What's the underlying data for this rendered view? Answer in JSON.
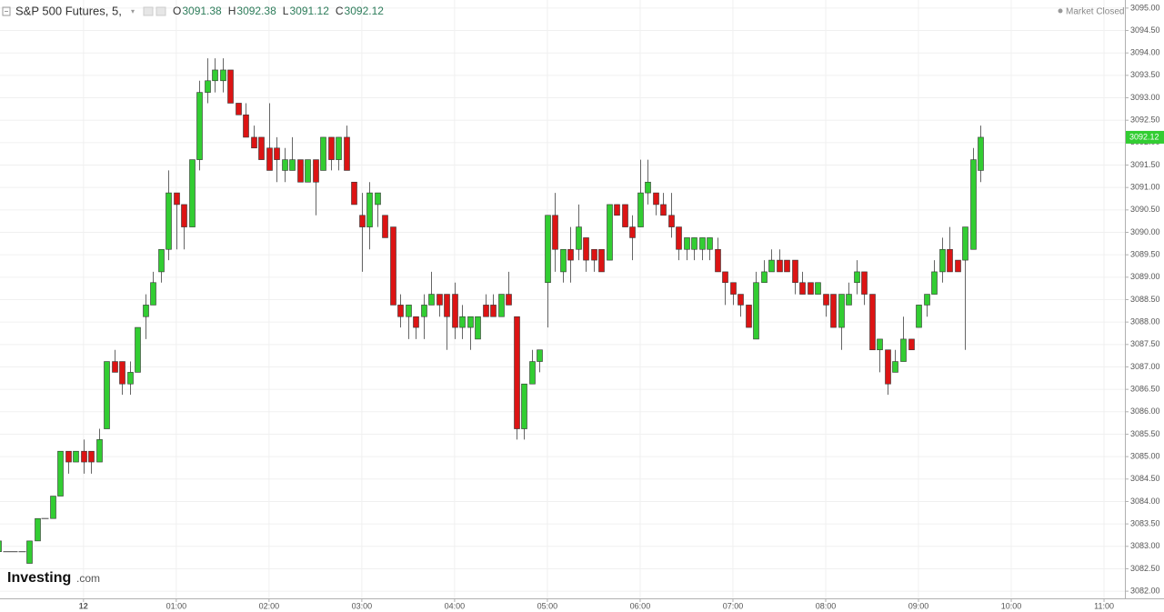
{
  "header": {
    "name": "S&P 500 Futures, 5,",
    "fields": [
      {
        "label": "O",
        "value": 3091.38
      },
      {
        "label": "H",
        "value": 3092.38
      },
      {
        "label": "L",
        "value": 3091.12
      },
      {
        "label": "C",
        "value": 3092.12
      }
    ],
    "status": "Market Closed"
  },
  "logo": {
    "brand": "Investing",
    "suffix": ".com"
  },
  "chart_data": {
    "type": "candlestick",
    "up_color": "#32cd32",
    "down_color": "#dc1414",
    "flat_color": "#444444",
    "grid": true,
    "xlim": [
      -54,
      673.5
    ],
    "ylim": [
      3081.84,
      3095.18
    ],
    "xticks": [
      {
        "value": 0,
        "label": "12"
      },
      {
        "value": 60,
        "label": "01:00"
      },
      {
        "value": 120,
        "label": "02:00"
      },
      {
        "value": 180,
        "label": "03:00"
      },
      {
        "value": 240,
        "label": "04:00"
      },
      {
        "value": 300,
        "label": "05:00"
      },
      {
        "value": 360,
        "label": "06:00"
      },
      {
        "value": 420,
        "label": "07:00"
      },
      {
        "value": 480,
        "label": "08:00"
      },
      {
        "value": 540,
        "label": "09:00"
      },
      {
        "value": 600,
        "label": "10:00"
      },
      {
        "value": 660,
        "label": "11:00"
      }
    ],
    "yticks": [
      {
        "value": 3082,
        "label": "3082.00"
      },
      {
        "value": 3082.5,
        "label": "3082.50"
      },
      {
        "value": 3083,
        "label": "3083.00"
      },
      {
        "value": 3083.5,
        "label": "3083.50"
      },
      {
        "value": 3084,
        "label": "3084.00"
      },
      {
        "value": 3084.5,
        "label": "3084.50"
      },
      {
        "value": 3085,
        "label": "3085.00"
      },
      {
        "value": 3085.5,
        "label": "3085.50"
      },
      {
        "value": 3086,
        "label": "3086.00"
      },
      {
        "value": 3086.5,
        "label": "3086.50"
      },
      {
        "value": 3087,
        "label": "3087.00"
      },
      {
        "value": 3087.5,
        "label": "3087.50"
      },
      {
        "value": 3088,
        "label": "3088.00"
      },
      {
        "value": 3088.5,
        "label": "3088.50"
      },
      {
        "value": 3089,
        "label": "3089.00"
      },
      {
        "value": 3089.5,
        "label": "3089.50"
      },
      {
        "value": 3090,
        "label": "3090.00"
      },
      {
        "value": 3090.5,
        "label": "3090.50"
      },
      {
        "value": 3091,
        "label": "3091.00"
      },
      {
        "value": 3091.5,
        "label": "3091.50"
      },
      {
        "value": 3092,
        "label": "3092.00"
      },
      {
        "value": 3092.5,
        "label": "3092.50"
      },
      {
        "value": 3093,
        "label": "3093.00"
      },
      {
        "value": 3093.5,
        "label": "3093.50"
      },
      {
        "value": 3094,
        "label": "3094.00"
      },
      {
        "value": 3094.5,
        "label": "3094.50"
      },
      {
        "value": 3095,
        "label": "3095.00"
      }
    ],
    "x": [
      -55,
      -50,
      -45,
      -40,
      -35,
      -30,
      -25,
      -20,
      -15,
      -10,
      -5,
      0,
      5,
      10,
      15,
      20,
      25,
      30,
      35,
      40,
      45,
      50,
      55,
      60,
      65,
      70,
      75,
      80,
      85,
      90,
      95,
      100,
      105,
      110,
      115,
      120,
      125,
      130,
      135,
      140,
      145,
      150,
      155,
      160,
      165,
      170,
      175,
      180,
      185,
      190,
      195,
      200,
      205,
      210,
      215,
      220,
      225,
      230,
      235,
      240,
      245,
      250,
      255,
      260,
      265,
      270,
      275,
      280,
      285,
      290,
      295,
      300,
      305,
      310,
      315,
      320,
      325,
      330,
      335,
      340,
      345,
      350,
      355,
      360,
      365,
      370,
      375,
      380,
      385,
      390,
      395,
      400,
      405,
      410,
      415,
      420,
      425,
      430,
      435,
      440,
      445,
      450,
      455,
      460,
      465,
      470,
      475,
      480,
      485,
      490,
      495,
      500,
      505,
      510,
      515,
      520,
      525,
      530,
      535,
      540,
      545,
      550,
      555,
      560,
      565,
      570,
      575,
      580
    ],
    "ohlc": [
      [
        3082.88,
        3083.12,
        3082.88,
        3083.12
      ],
      [
        3082.88,
        3082.88,
        3082.88,
        3082.88
      ],
      [
        3082.88,
        3082.88,
        3082.88,
        3082.88
      ],
      [
        3082.88,
        3082.88,
        3082.88,
        3082.88
      ],
      [
        3082.62,
        3083.12,
        3082.62,
        3083.12
      ],
      [
        3083.12,
        3083.62,
        3083.12,
        3083.62
      ],
      [
        3083.62,
        3083.62,
        3083.62,
        3083.62
      ],
      [
        3083.62,
        3084.12,
        3083.62,
        3084.12
      ],
      [
        3084.12,
        3085.12,
        3084.12,
        3085.12
      ],
      [
        3085.12,
        3085.12,
        3084.62,
        3084.88
      ],
      [
        3084.88,
        3085.12,
        3084.88,
        3085.12
      ],
      [
        3085.12,
        3085.38,
        3084.62,
        3084.88
      ],
      [
        3085.12,
        3085.12,
        3084.62,
        3084.88
      ],
      [
        3084.88,
        3085.62,
        3084.88,
        3085.38
      ],
      [
        3085.62,
        3087.12,
        3085.62,
        3087.12
      ],
      [
        3087.12,
        3087.38,
        3086.88,
        3086.88
      ],
      [
        3087.12,
        3087.12,
        3086.38,
        3086.62
      ],
      [
        3086.62,
        3087.12,
        3086.38,
        3086.88
      ],
      [
        3086.88,
        3087.88,
        3086.88,
        3087.88
      ],
      [
        3088.12,
        3088.62,
        3087.62,
        3088.38
      ],
      [
        3088.38,
        3089.12,
        3088.38,
        3088.88
      ],
      [
        3089.12,
        3089.62,
        3088.88,
        3089.62
      ],
      [
        3089.62,
        3091.38,
        3089.38,
        3090.88
      ],
      [
        3090.88,
        3090.88,
        3089.62,
        3090.62
      ],
      [
        3090.62,
        3090.62,
        3089.62,
        3090.12
      ],
      [
        3090.12,
        3091.62,
        3090.12,
        3091.62
      ],
      [
        3091.62,
        3093.38,
        3091.38,
        3093.12
      ],
      [
        3093.12,
        3093.88,
        3092.88,
        3093.38
      ],
      [
        3093.38,
        3093.88,
        3093.12,
        3093.62
      ],
      [
        3093.38,
        3093.88,
        3093.12,
        3093.62
      ],
      [
        3093.62,
        3093.62,
        3092.88,
        3092.88
      ],
      [
        3092.88,
        3092.88,
        3092.62,
        3092.62
      ],
      [
        3092.62,
        3092.88,
        3092.12,
        3092.12
      ],
      [
        3092.12,
        3092.38,
        3091.88,
        3091.88
      ],
      [
        3092.12,
        3092.12,
        3091.62,
        3091.62
      ],
      [
        3091.88,
        3092.88,
        3091.38,
        3091.38
      ],
      [
        3091.88,
        3092.12,
        3091.12,
        3091.62
      ],
      [
        3091.38,
        3091.88,
        3091.12,
        3091.62
      ],
      [
        3091.38,
        3092.12,
        3091.38,
        3091.62
      ],
      [
        3091.62,
        3091.62,
        3091.12,
        3091.12
      ],
      [
        3091.12,
        3091.62,
        3091.12,
        3091.62
      ],
      [
        3091.62,
        3091.62,
        3090.38,
        3091.12
      ],
      [
        3091.38,
        3092.12,
        3091.38,
        3092.12
      ],
      [
        3092.12,
        3092.12,
        3091.38,
        3091.62
      ],
      [
        3091.62,
        3092.12,
        3091.38,
        3092.12
      ],
      [
        3092.12,
        3092.38,
        3091.38,
        3091.38
      ],
      [
        3091.12,
        3091.12,
        3090.62,
        3090.62
      ],
      [
        3090.38,
        3090.88,
        3089.12,
        3090.12
      ],
      [
        3090.12,
        3091.12,
        3089.62,
        3090.88
      ],
      [
        3090.62,
        3090.88,
        3090.12,
        3090.88
      ],
      [
        3090.38,
        3090.38,
        3089.88,
        3089.88
      ],
      [
        3090.12,
        3090.12,
        3088.38,
        3088.38
      ],
      [
        3088.38,
        3088.62,
        3087.88,
        3088.12
      ],
      [
        3088.12,
        3088.38,
        3087.62,
        3088.38
      ],
      [
        3088.12,
        3088.12,
        3087.62,
        3087.88
      ],
      [
        3088.12,
        3088.62,
        3087.62,
        3088.38
      ],
      [
        3088.38,
        3089.12,
        3088.38,
        3088.62
      ],
      [
        3088.62,
        3088.62,
        3088.12,
        3088.38
      ],
      [
        3088.62,
        3088.62,
        3087.38,
        3088.12
      ],
      [
        3088.62,
        3088.88,
        3087.62,
        3087.88
      ],
      [
        3087.88,
        3088.38,
        3087.62,
        3088.12
      ],
      [
        3087.88,
        3088.12,
        3087.38,
        3088.12
      ],
      [
        3087.62,
        3088.12,
        3087.62,
        3088.12
      ],
      [
        3088.38,
        3088.62,
        3088.12,
        3088.12
      ],
      [
        3088.38,
        3088.62,
        3088.12,
        3088.12
      ],
      [
        3088.12,
        3088.62,
        3088.12,
        3088.62
      ],
      [
        3088.62,
        3089.12,
        3088.38,
        3088.38
      ],
      [
        3088.12,
        3088.12,
        3085.38,
        3085.62
      ],
      [
        3085.62,
        3086.62,
        3085.38,
        3086.62
      ],
      [
        3086.62,
        3087.38,
        3086.62,
        3087.12
      ],
      [
        3087.12,
        3087.38,
        3086.88,
        3087.38
      ],
      [
        3088.88,
        3090.38,
        3087.88,
        3090.38
      ],
      [
        3090.38,
        3090.88,
        3089.12,
        3089.62
      ],
      [
        3089.12,
        3089.62,
        3088.88,
        3089.62
      ],
      [
        3089.62,
        3090.12,
        3088.88,
        3089.38
      ],
      [
        3089.62,
        3090.62,
        3089.38,
        3090.12
      ],
      [
        3089.88,
        3089.88,
        3089.12,
        3089.38
      ],
      [
        3089.62,
        3089.62,
        3089.12,
        3089.38
      ],
      [
        3089.62,
        3089.62,
        3089.12,
        3089.12
      ],
      [
        3089.38,
        3090.62,
        3089.38,
        3090.62
      ],
      [
        3090.62,
        3090.62,
        3090.38,
        3090.38
      ],
      [
        3090.62,
        3090.62,
        3090.12,
        3090.12
      ],
      [
        3090.12,
        3090.38,
        3089.38,
        3089.88
      ],
      [
        3090.12,
        3091.62,
        3090.12,
        3090.88
      ],
      [
        3090.88,
        3091.62,
        3090.62,
        3091.12
      ],
      [
        3090.88,
        3090.88,
        3090.38,
        3090.62
      ],
      [
        3090.62,
        3090.88,
        3090.38,
        3090.38
      ],
      [
        3090.38,
        3090.88,
        3089.88,
        3090.12
      ],
      [
        3090.12,
        3090.12,
        3089.38,
        3089.62
      ],
      [
        3089.62,
        3089.88,
        3089.38,
        3089.88
      ],
      [
        3089.62,
        3089.88,
        3089.38,
        3089.88
      ],
      [
        3089.62,
        3089.88,
        3089.38,
        3089.88
      ],
      [
        3089.62,
        3089.88,
        3089.38,
        3089.88
      ],
      [
        3089.62,
        3089.88,
        3089.12,
        3089.12
      ],
      [
        3089.12,
        3089.12,
        3088.38,
        3088.88
      ],
      [
        3088.88,
        3088.88,
        3088.38,
        3088.62
      ],
      [
        3088.62,
        3088.62,
        3088.12,
        3088.38
      ],
      [
        3088.38,
        3088.38,
        3087.88,
        3087.88
      ],
      [
        3087.62,
        3089.12,
        3087.62,
        3088.88
      ],
      [
        3088.88,
        3089.38,
        3088.88,
        3089.12
      ],
      [
        3089.12,
        3089.62,
        3089.12,
        3089.38
      ],
      [
        3089.38,
        3089.62,
        3089.12,
        3089.12
      ],
      [
        3089.38,
        3089.38,
        3089.12,
        3089.12
      ],
      [
        3089.38,
        3089.38,
        3088.62,
        3088.88
      ],
      [
        3088.88,
        3089.12,
        3088.62,
        3088.62
      ],
      [
        3088.88,
        3088.88,
        3088.62,
        3088.62
      ],
      [
        3088.62,
        3088.88,
        3088.62,
        3088.88
      ],
      [
        3088.62,
        3088.62,
        3088.12,
        3088.38
      ],
      [
        3088.62,
        3088.62,
        3087.88,
        3087.88
      ],
      [
        3087.88,
        3088.62,
        3087.38,
        3088.62
      ],
      [
        3088.38,
        3088.88,
        3088.38,
        3088.62
      ],
      [
        3088.88,
        3089.38,
        3088.62,
        3089.12
      ],
      [
        3089.12,
        3089.12,
        3088.38,
        3088.62
      ],
      [
        3088.62,
        3088.62,
        3087.38,
        3087.38
      ],
      [
        3087.38,
        3087.62,
        3086.88,
        3087.62
      ],
      [
        3087.38,
        3087.38,
        3086.38,
        3086.62
      ],
      [
        3086.88,
        3087.38,
        3086.88,
        3087.12
      ],
      [
        3087.12,
        3088.12,
        3087.12,
        3087.62
      ],
      [
        3087.62,
        3087.62,
        3087.38,
        3087.38
      ],
      [
        3087.88,
        3088.38,
        3087.88,
        3088.38
      ],
      [
        3088.38,
        3088.62,
        3088.12,
        3088.62
      ],
      [
        3088.62,
        3089.38,
        3088.62,
        3089.12
      ],
      [
        3089.12,
        3089.88,
        3088.88,
        3089.62
      ],
      [
        3089.62,
        3090.12,
        3089.12,
        3089.12
      ],
      [
        3089.38,
        3089.38,
        3089.12,
        3089.12
      ],
      [
        3089.38,
        3090.12,
        3087.38,
        3090.12
      ],
      [
        3089.62,
        3091.88,
        3089.62,
        3091.62
      ],
      [
        3091.38,
        3092.38,
        3091.12,
        3092.12
      ]
    ]
  }
}
